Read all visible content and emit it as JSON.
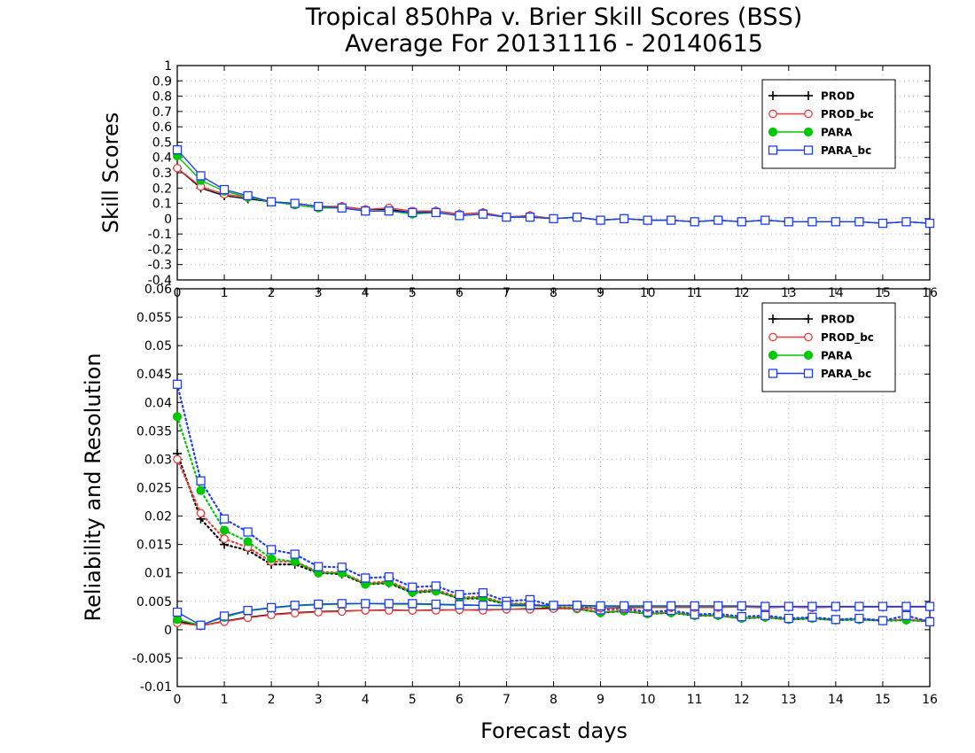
{
  "title_line1": "Tropical 850hPa v. Brier Skill Scores (BSS)",
  "title_line2": "Average For 20131116 - 20140615",
  "xlabel": "Forecast days",
  "colors": {
    "PROD": "#000000",
    "PROD_bc": "#f03c3c",
    "PARA": "#00c800",
    "PARA_bc": "#1e3cff"
  },
  "chart_data": [
    {
      "type": "line",
      "ylabel": "Skill Scores",
      "xlim": [
        0,
        16
      ],
      "ylim": [
        -0.4,
        1
      ],
      "yticks": [
        "-0.4",
        "-0.3",
        "-0.2",
        "-0.1",
        "0",
        "0.1",
        "0.2",
        "0.3",
        "0.4",
        "0.5",
        "0.6",
        "0.7",
        "0.8",
        "0.9",
        "1"
      ],
      "xticks": [
        "0",
        "1",
        "2",
        "3",
        "4",
        "5",
        "6",
        "7",
        "8",
        "9",
        "10",
        "11",
        "12",
        "13",
        "14",
        "15",
        "16"
      ],
      "grid": true,
      "legend": "top-right",
      "x": [
        0,
        0.5,
        1,
        1.5,
        2,
        2.5,
        3,
        3.5,
        4,
        4.5,
        5,
        5.5,
        6,
        6.5,
        7,
        7.5,
        8,
        8.5,
        9,
        9.5,
        10,
        10.5,
        11,
        11.5,
        12,
        12.5,
        13,
        13.5,
        14,
        14.5,
        15,
        15.5,
        16
      ],
      "series": [
        {
          "name": "PROD",
          "marker": "plus",
          "values": [
            0.33,
            0.2,
            0.15,
            0.13,
            0.11,
            0.1,
            0.08,
            0.08,
            0.06,
            0.06,
            0.04,
            0.05,
            0.03,
            0.04,
            0.01,
            0.02,
            0.0,
            0.01,
            -0.01,
            0.0,
            -0.01,
            -0.01,
            -0.02,
            -0.01,
            -0.02,
            -0.01,
            -0.02,
            -0.02,
            -0.02,
            -0.02,
            -0.03,
            -0.02,
            -0.03
          ]
        },
        {
          "name": "PROD_bc",
          "marker": "circle",
          "values": [
            0.33,
            0.21,
            0.16,
            0.14,
            0.11,
            0.1,
            0.08,
            0.08,
            0.06,
            0.07,
            0.05,
            0.05,
            0.03,
            0.04,
            0.01,
            0.02,
            0.0,
            0.01,
            -0.01,
            0.0,
            -0.01,
            -0.01,
            -0.02,
            -0.01,
            -0.02,
            -0.01,
            -0.02,
            -0.02,
            -0.02,
            -0.02,
            -0.03,
            -0.02,
            -0.03
          ]
        },
        {
          "name": "PARA",
          "marker": "dot",
          "values": [
            0.41,
            0.25,
            0.18,
            0.14,
            0.11,
            0.09,
            0.07,
            0.07,
            0.05,
            0.05,
            0.03,
            0.04,
            0.02,
            0.03,
            0.01,
            0.01,
            0.0,
            0.01,
            -0.01,
            0.0,
            -0.01,
            -0.01,
            -0.02,
            -0.01,
            -0.02,
            -0.01,
            -0.02,
            -0.02,
            -0.02,
            -0.02,
            -0.03,
            -0.02,
            -0.03
          ]
        },
        {
          "name": "PARA_bc",
          "marker": "square",
          "values": [
            0.45,
            0.28,
            0.19,
            0.15,
            0.11,
            0.1,
            0.08,
            0.07,
            0.05,
            0.05,
            0.04,
            0.04,
            0.02,
            0.03,
            0.01,
            0.01,
            0.0,
            0.01,
            -0.01,
            0.0,
            -0.01,
            -0.01,
            -0.02,
            -0.01,
            -0.02,
            -0.01,
            -0.02,
            -0.02,
            -0.02,
            -0.02,
            -0.03,
            -0.02,
            -0.03
          ]
        }
      ]
    },
    {
      "type": "line",
      "ylabel": "Reliability and Resolution",
      "xlim": [
        0,
        16
      ],
      "ylim": [
        -0.01,
        0.06
      ],
      "yticks": [
        "-0.01",
        "-0.005",
        "0",
        "0.005",
        "0.01",
        "0.015",
        "0.02",
        "0.025",
        "0.03",
        "0.035",
        "0.04",
        "0.045",
        "0.05",
        "0.055",
        "0.06"
      ],
      "xticks": [
        "0",
        "1",
        "2",
        "3",
        "4",
        "5",
        "6",
        "7",
        "8",
        "9",
        "10",
        "11",
        "12",
        "13",
        "14",
        "15",
        "16"
      ],
      "grid": true,
      "legend": "top-right",
      "x": [
        0,
        0.5,
        1,
        1.5,
        2,
        2.5,
        3,
        3.5,
        4,
        4.5,
        5,
        5.5,
        6,
        6.5,
        7,
        7.5,
        8,
        8.5,
        9,
        9.5,
        10,
        10.5,
        11,
        11.5,
        12,
        12.5,
        13,
        13.5,
        14,
        14.5,
        15,
        15.5,
        16
      ],
      "series": [
        {
          "name": "PROD",
          "marker": "plus",
          "style": "dotted",
          "values": [
            0.031,
            0.0195,
            0.015,
            0.014,
            0.0115,
            0.0115,
            0.01,
            0.0098,
            0.008,
            0.0082,
            0.0065,
            0.0068,
            0.0055,
            0.0055,
            0.0045,
            0.0045,
            0.0038,
            0.0037,
            0.003,
            0.0033,
            0.0028,
            0.003,
            0.0025,
            0.0025,
            0.002,
            0.0022,
            0.0018,
            0.002,
            0.0017,
            0.0018,
            0.0016,
            0.0017,
            0.0015
          ]
        },
        {
          "name": "PROD_bc",
          "marker": "circle",
          "style": "dotted",
          "values": [
            0.03,
            0.0205,
            0.016,
            0.0145,
            0.012,
            0.012,
            0.0102,
            0.01,
            0.0082,
            0.0085,
            0.0068,
            0.007,
            0.0057,
            0.0058,
            0.0046,
            0.0046,
            0.0039,
            0.0038,
            0.0031,
            0.0034,
            0.0029,
            0.0031,
            0.0026,
            0.0026,
            0.0021,
            0.0023,
            0.0019,
            0.0021,
            0.0018,
            0.0019,
            0.0017,
            0.0018,
            0.0016
          ]
        },
        {
          "name": "PARA",
          "marker": "dot",
          "style": "dotted",
          "values": [
            0.0375,
            0.0245,
            0.0175,
            0.0155,
            0.0125,
            0.012,
            0.01,
            0.01,
            0.008,
            0.0083,
            0.0066,
            0.0068,
            0.0055,
            0.0056,
            0.0045,
            0.0045,
            0.0038,
            0.0037,
            0.003,
            0.0033,
            0.0028,
            0.003,
            0.0025,
            0.0025,
            0.002,
            0.0022,
            0.0018,
            0.002,
            0.0017,
            0.0018,
            0.0016,
            0.0017,
            0.0015
          ]
        },
        {
          "name": "PARA_bc",
          "marker": "square",
          "style": "dotted",
          "values": [
            0.0432,
            0.0262,
            0.0195,
            0.0172,
            0.0141,
            0.0133,
            0.0111,
            0.011,
            0.0091,
            0.0093,
            0.0075,
            0.0077,
            0.0062,
            0.0065,
            0.005,
            0.0053,
            0.0042,
            0.0043,
            0.0035,
            0.0038,
            0.0031,
            0.0034,
            0.0027,
            0.0028,
            0.0023,
            0.0025,
            0.002,
            0.0022,
            0.0018,
            0.002,
            0.0016,
            0.0025,
            0.0014
          ]
        },
        {
          "name": "PROD",
          "marker": "plus",
          "style": "solid",
          "legend": false,
          "values": [
            0.0015,
            0.0007,
            0.0015,
            0.0022,
            0.0027,
            0.003,
            0.0032,
            0.0033,
            0.0034,
            0.0035,
            0.0034,
            0.0035,
            0.0035,
            0.0035,
            0.0036,
            0.0037,
            0.0038,
            0.0038,
            0.0038,
            0.0039,
            0.0039,
            0.0039,
            0.004,
            0.004,
            0.004,
            0.0039,
            0.004,
            0.0039,
            0.004,
            0.004,
            0.004,
            0.004,
            0.004
          ]
        },
        {
          "name": "PROD_bc",
          "marker": "circle",
          "style": "solid",
          "legend": false,
          "values": [
            0.0012,
            0.0007,
            0.0014,
            0.0021,
            0.0026,
            0.0029,
            0.0031,
            0.0032,
            0.0034,
            0.0034,
            0.0034,
            0.0034,
            0.0035,
            0.0034,
            0.0036,
            0.0036,
            0.0037,
            0.0038,
            0.0038,
            0.0038,
            0.0039,
            0.0039,
            0.0039,
            0.0039,
            0.004,
            0.0039,
            0.004,
            0.0039,
            0.004,
            0.004,
            0.004,
            0.004,
            0.004
          ]
        },
        {
          "name": "PARA",
          "marker": "dot",
          "style": "solid",
          "legend": false,
          "values": [
            0.0018,
            0.0008,
            0.0022,
            0.0033,
            0.0038,
            0.0042,
            0.0044,
            0.0045,
            0.0046,
            0.0045,
            0.0045,
            0.0044,
            0.0043,
            0.0043,
            0.0042,
            0.0042,
            0.0042,
            0.0042,
            0.0041,
            0.0041,
            0.0041,
            0.0041,
            0.0041,
            0.0041,
            0.0041,
            0.0041,
            0.0041,
            0.0041,
            0.0041,
            0.0041,
            0.0041,
            0.0041,
            0.0041
          ]
        },
        {
          "name": "PARA_bc",
          "marker": "square",
          "style": "solid",
          "legend": false,
          "values": [
            0.0031,
            0.0008,
            0.0024,
            0.0034,
            0.0039,
            0.0043,
            0.0045,
            0.0046,
            0.0046,
            0.0046,
            0.0046,
            0.0045,
            0.0044,
            0.0043,
            0.0043,
            0.0043,
            0.0043,
            0.0043,
            0.0042,
            0.0042,
            0.0042,
            0.0042,
            0.0042,
            0.0042,
            0.0042,
            0.0041,
            0.0041,
            0.0041,
            0.0041,
            0.0041,
            0.0041,
            0.0041,
            0.0041
          ]
        }
      ]
    }
  ]
}
